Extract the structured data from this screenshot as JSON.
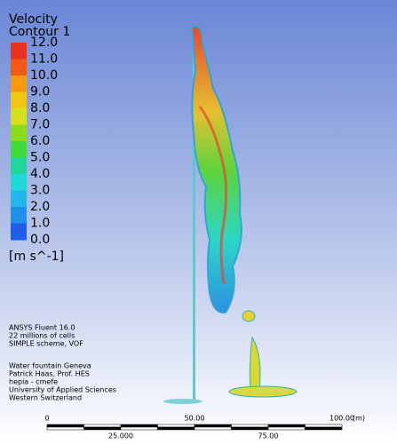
{
  "legend": {
    "title": "Velocity",
    "subtitle": "Contour 1",
    "labels": [
      "12.0",
      "11.0",
      "10.0",
      "9.0",
      "8.0",
      "7.0",
      "6.0",
      "5.0",
      "4.0",
      "3.0",
      "2.0",
      "1.0",
      "0.0"
    ],
    "unit": "[m s^-1]"
  },
  "info": [
    "ANSYS Fluent 16.0",
    "22 millions of cells",
    "SIMPLE scheme, VOF"
  ],
  "credits": [
    "Water fountain Geneva",
    "Patrick Haas, Prof. HES",
    "hepia - cmefe",
    "University of Applied Sciences",
    "Western Switzerland"
  ],
  "scale_bar": {
    "top_labels": [
      "0",
      "50.00",
      "100.00"
    ],
    "unit": "(m)",
    "bottom_labels": [
      "25.000",
      "75.00"
    ]
  }
}
